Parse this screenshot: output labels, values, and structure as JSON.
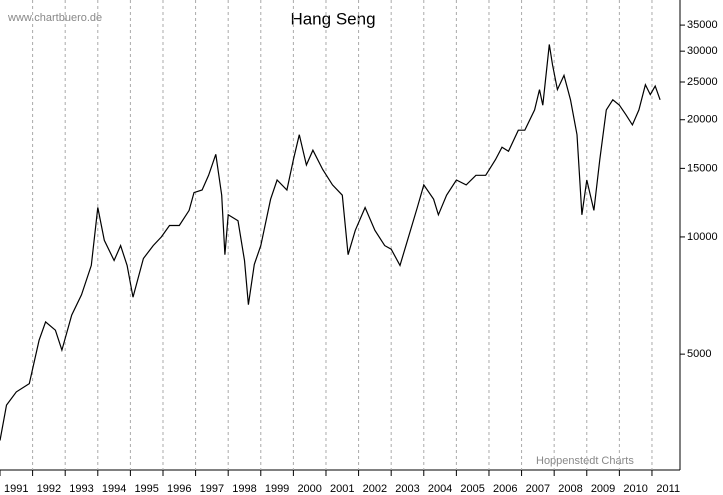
{
  "chart_data": {
    "type": "line",
    "title": "Hang Seng",
    "source": "www.chartbuero.de",
    "credit": "Hoppenstedt Charts",
    "x": [
      1991.0,
      1991.2,
      1991.5,
      1991.9,
      1992.2,
      1992.4,
      1992.7,
      1992.9,
      1993.2,
      1993.5,
      1993.8,
      1994.0,
      1994.2,
      1994.5,
      1994.7,
      1994.9,
      1995.08,
      1995.4,
      1995.7,
      1995.95,
      1996.2,
      1996.5,
      1996.8,
      1996.95,
      1997.2,
      1997.4,
      1997.62,
      1997.8,
      1997.9,
      1998.0,
      1998.3,
      1998.5,
      1998.62,
      1998.8,
      1999.0,
      1999.3,
      1999.5,
      1999.8,
      2000.0,
      2000.18,
      2000.4,
      2000.6,
      2000.9,
      2001.2,
      2001.5,
      2001.68,
      2001.9,
      2002.2,
      2002.5,
      2002.8,
      2003.0,
      2003.27,
      2003.5,
      2003.8,
      2004.0,
      2004.3,
      2004.45,
      2004.7,
      2005.0,
      2005.3,
      2005.6,
      2005.9,
      2006.2,
      2006.4,
      2006.6,
      2006.9,
      2007.1,
      2007.4,
      2007.55,
      2007.65,
      2007.85,
      2007.95,
      2008.1,
      2008.3,
      2008.5,
      2008.7,
      2008.85,
      2009.0,
      2009.22,
      2009.4,
      2009.6,
      2009.8,
      2010.0,
      2010.2,
      2010.4,
      2010.6,
      2010.8,
      2010.95,
      2011.1,
      2011.25
    ],
    "values": [
      3000,
      3700,
      4000,
      4200,
      5430,
      6050,
      5760,
      5120,
      6300,
      7100,
      8450,
      11900,
      9800,
      8700,
      9500,
      8450,
      7000,
      8800,
      9500,
      10000,
      10700,
      10700,
      11700,
      13000,
      13200,
      14400,
      16300,
      12800,
      9000,
      11400,
      11000,
      8700,
      6700,
      8500,
      9500,
      12500,
      14000,
      13200,
      15800,
      18300,
      15300,
      16700,
      14900,
      13600,
      12800,
      9000,
      10400,
      11900,
      10400,
      9500,
      9300,
      8450,
      9800,
      11900,
      13600,
      12500,
      11400,
      12800,
      14000,
      13600,
      14400,
      14400,
      15800,
      17000,
      16600,
      18800,
      18800,
      21200,
      23900,
      21800,
      31200,
      27700,
      23900,
      26000,
      22500,
      18300,
      11400,
      14000,
      11700,
      15800,
      21200,
      22500,
      21800,
      20600,
      19400,
      21200,
      24600,
      23200,
      24400,
      22500
    ],
    "color": "#000000",
    "xlim": [
      1991,
      2011.86
    ],
    "xticks": [
      1991,
      1992,
      1993,
      1994,
      1995,
      1996,
      1997,
      1998,
      1999,
      2000,
      2001,
      2002,
      2003,
      2004,
      2005,
      2006,
      2007,
      2008,
      2009,
      2010,
      2011
    ],
    "ylim": [
      2520,
      40600
    ],
    "yticks": [
      5000,
      10000,
      15000,
      20000,
      25000,
      30000,
      35000
    ],
    "log_y": true,
    "grid": true
  }
}
